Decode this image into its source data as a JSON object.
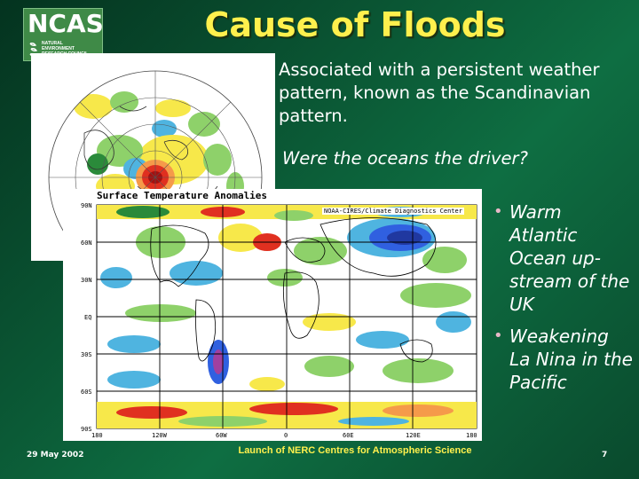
{
  "logo": {
    "name": "NCAS",
    "subtitle_lines": [
      "NATURAL",
      "ENVIRONMENT",
      "RESEARCH COUNCIL"
    ]
  },
  "slide": {
    "title": "Cause of Floods",
    "intro": "Associated with a persistent weather pattern, known as the Scandinavian pattern.",
    "question": "Were the oceans the driver?"
  },
  "map": {
    "title": "Surface Temperature Anomalies",
    "credit": "NOAA-CIRES/Climate Diagnostics Center",
    "lat_labels": [
      "90N",
      "60N",
      "30N",
      "EQ",
      "30S",
      "60S",
      "90S"
    ],
    "lon_labels": [
      "180",
      "120W",
      "60W",
      "0",
      "60E",
      "120E",
      "180"
    ]
  },
  "bullets": [
    {
      "text": "Warm Atlantic Ocean up-stream of the UK"
    },
    {
      "text": "Weakening La Nina in the Pacific"
    }
  ],
  "footer": {
    "date": "29 May 2002",
    "center": "Launch of NERC Centres for Atmospheric Science",
    "page": "7"
  },
  "colors": {
    "title": "#fff04d",
    "text": "#ffffff",
    "warm": "#e03020",
    "cool": "#3060e0"
  }
}
